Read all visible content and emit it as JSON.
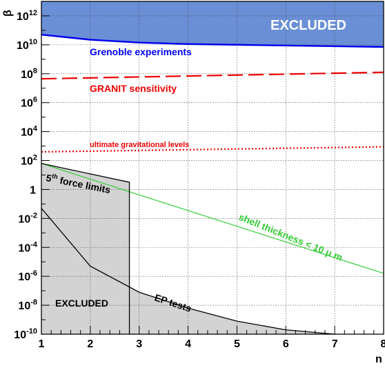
{
  "chart_data": {
    "type": "line",
    "title": "",
    "xlabel": "n",
    "ylabel": "β",
    "xlim": [
      1,
      8
    ],
    "ylim_log10": [
      -10,
      13
    ],
    "y_scale": "log",
    "grid": true,
    "x_ticks": [
      "1",
      "2",
      "3",
      "4",
      "5",
      "6",
      "7",
      "8"
    ],
    "y_ticks": [
      {
        "base": "10",
        "exp": "-10",
        "log": -10
      },
      {
        "base": "10",
        "exp": "-8",
        "log": -8
      },
      {
        "base": "10",
        "exp": "-6",
        "log": -6
      },
      {
        "base": "10",
        "exp": "-4",
        "log": -4
      },
      {
        "base": "10",
        "exp": "-2",
        "log": -2
      },
      {
        "base": "1",
        "exp": "",
        "log": 0
      },
      {
        "base": "10",
        "exp": "2",
        "log": 2
      },
      {
        "base": "10",
        "exp": "4",
        "log": 4
      },
      {
        "base": "10",
        "exp": "6",
        "log": 6
      },
      {
        "base": "10",
        "exp": "8",
        "log": 8
      },
      {
        "base": "10",
        "exp": "10",
        "log": 10
      },
      {
        "base": "10",
        "exp": "12",
        "log": 12
      }
    ],
    "series": [
      {
        "name": "Grenoble experiments",
        "color": "#0000ee",
        "style": "solid",
        "x": [
          1,
          2,
          3,
          4,
          5,
          6,
          7,
          8
        ],
        "log10_y": [
          10.7,
          10.35,
          10.15,
          10.05,
          10.0,
          9.95,
          9.9,
          9.85
        ]
      },
      {
        "name": "GRANIT sensitivity",
        "color": "#ee0000",
        "style": "dashed",
        "x": [
          1,
          8
        ],
        "log10_y": [
          7.65,
          8.1
        ]
      },
      {
        "name": "ultimate gravitational levels",
        "color": "#ee0000",
        "style": "dotted",
        "x": [
          1,
          8
        ],
        "log10_y": [
          2.6,
          2.95
        ]
      },
      {
        "name": "shell thickness < 10 μ m",
        "color": "#33cc33",
        "style": "solid",
        "x": [
          1,
          8
        ],
        "log10_y": [
          1.8,
          -5.8
        ]
      },
      {
        "name": "5th force limits",
        "color": "#000000",
        "style": "solid",
        "x": [
          1,
          2.8,
          2.8
        ],
        "log10_y": [
          1.8,
          0.5,
          -10
        ]
      },
      {
        "name": "EP tests",
        "color": "#000000",
        "style": "solid",
        "x": [
          1,
          2,
          3,
          4,
          5,
          6,
          7
        ],
        "log10_y": [
          -1.3,
          -5.3,
          -7.1,
          -8.2,
          -9.1,
          -9.7,
          -10.2
        ]
      }
    ],
    "regions": [
      {
        "name": "EXCLUDED",
        "where": "above Grenoble experiments",
        "color": "#6a8fd6"
      },
      {
        "name": "EXCLUDED",
        "where": "below 5th force limits and EP tests",
        "color": "#d3d3d3"
      }
    ],
    "annotations": {
      "excluded_top": "EXCLUDED",
      "excluded_bottom": "EXCLUDED",
      "grenoble": "Grenoble experiments",
      "granit": "GRANIT sensitivity",
      "ultimate": "ultimate gravitational levels",
      "fifth_force_number": "5",
      "fifth_force_sup": "th",
      "fifth_force_rest": " force limits",
      "ep_tests": "EP tests",
      "shell": "shell thickness < 10 μ m"
    }
  }
}
